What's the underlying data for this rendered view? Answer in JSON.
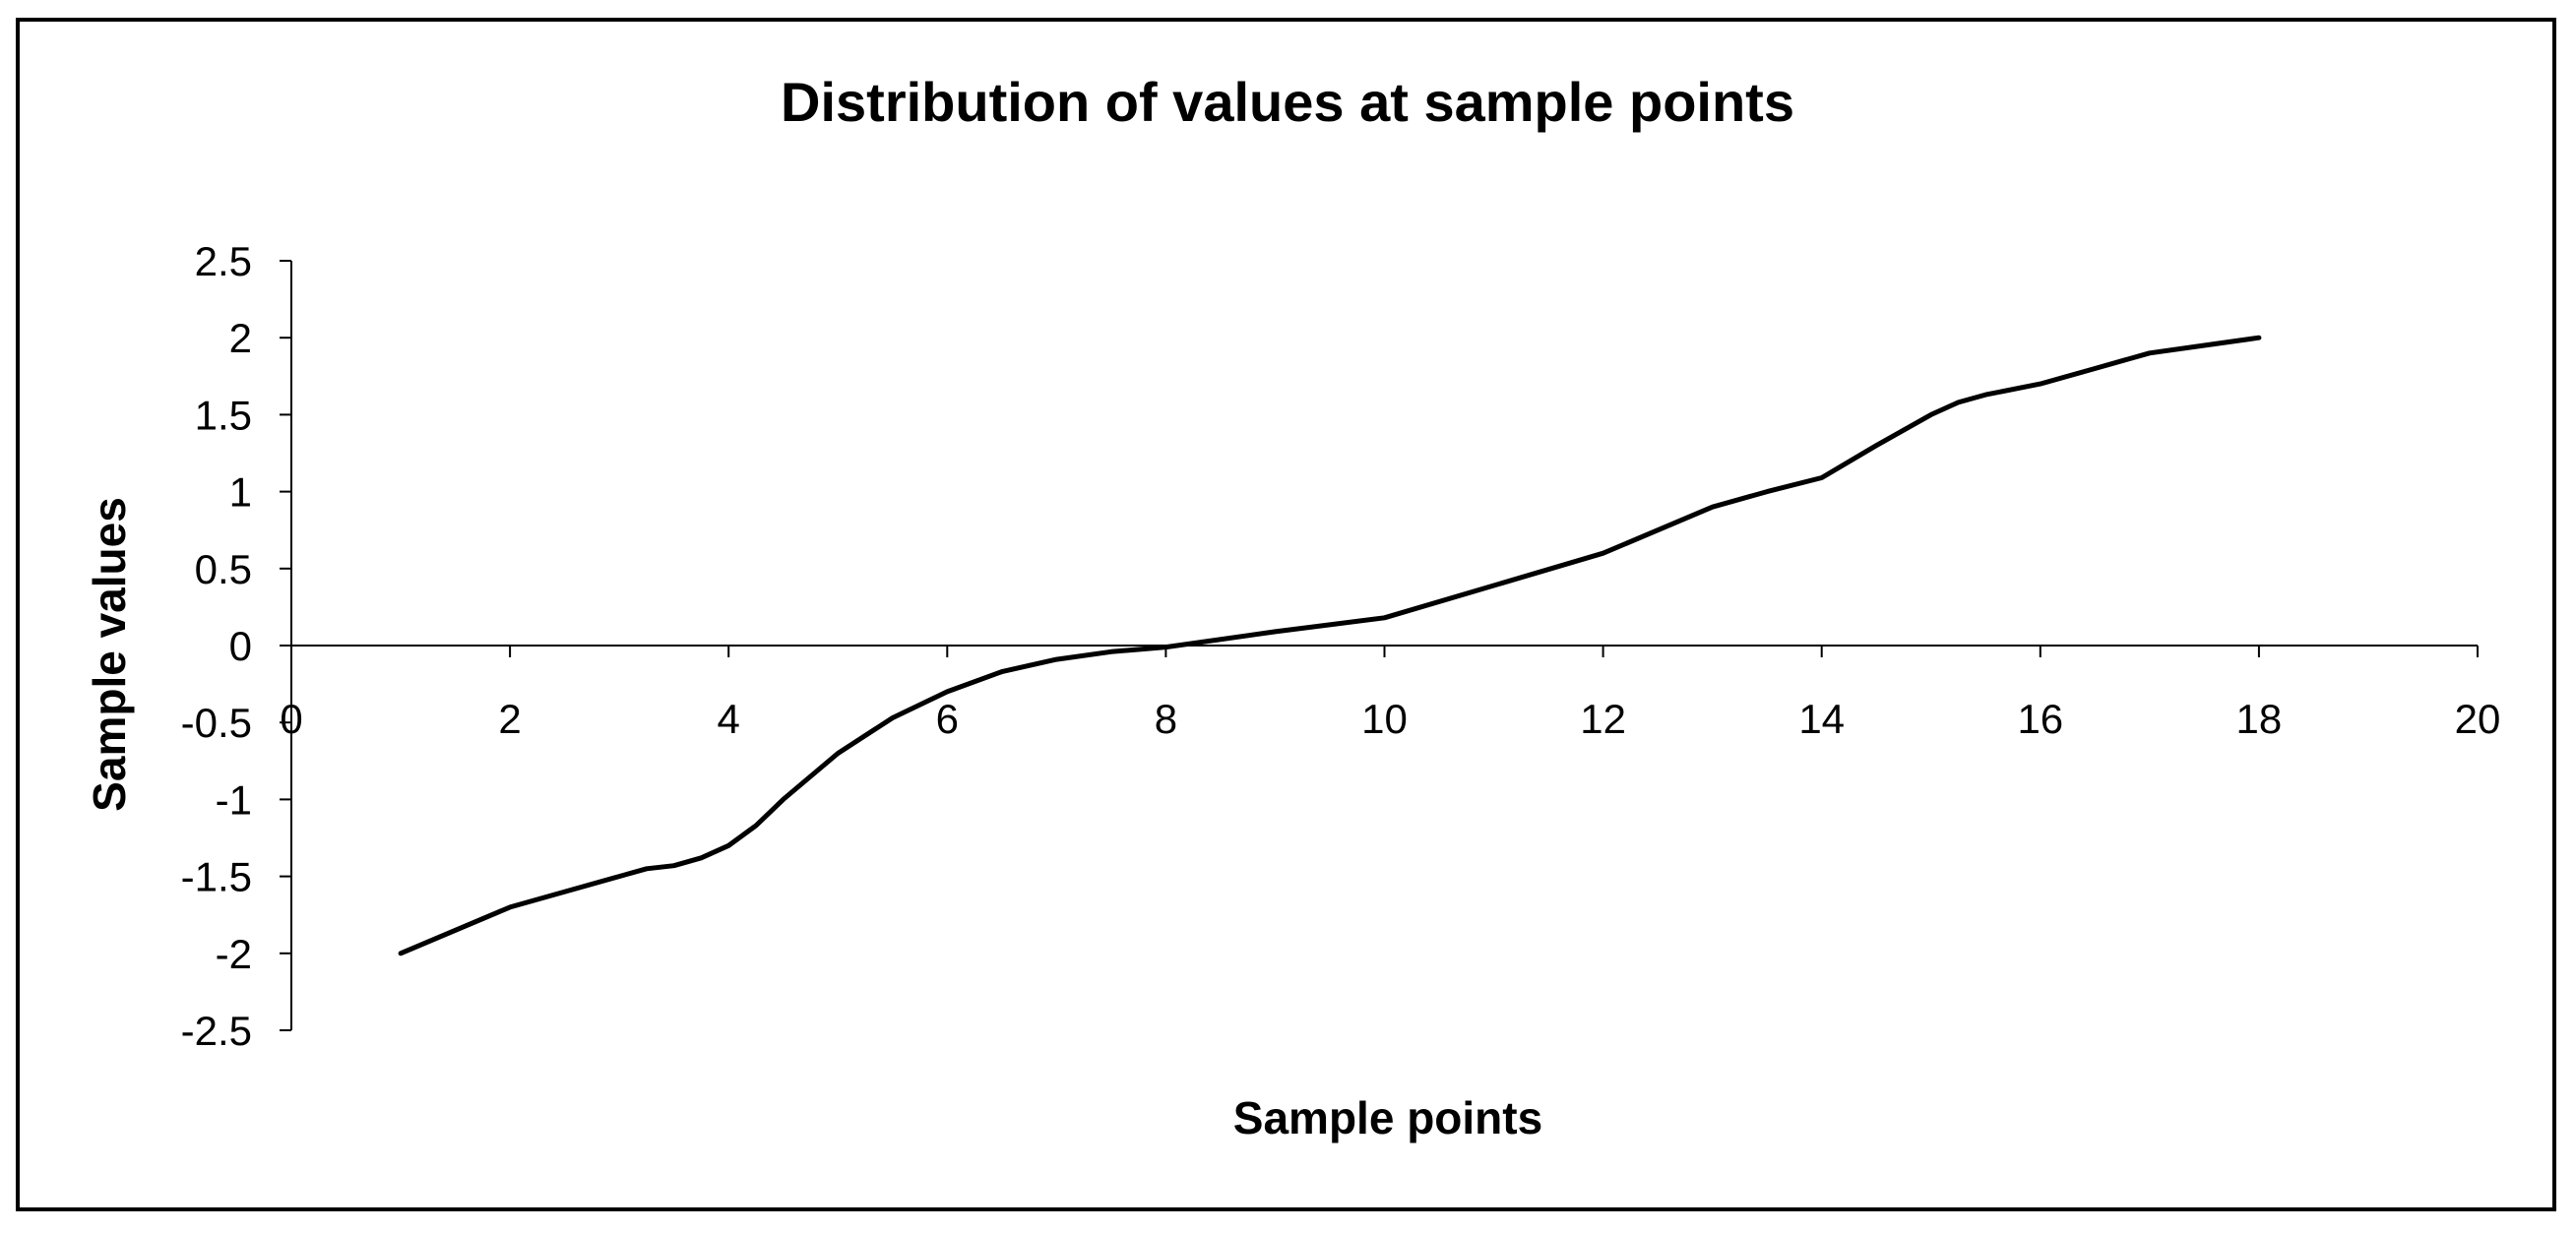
{
  "chart_data": {
    "type": "line",
    "title": "Distribution of values at sample points",
    "xlabel": "Sample points",
    "ylabel": "Sample values",
    "xlim": [
      0,
      20
    ],
    "ylim": [
      -2.5,
      2.5
    ],
    "x_ticks": [
      0,
      2,
      4,
      6,
      8,
      10,
      12,
      14,
      16,
      18,
      20
    ],
    "y_ticks": [
      2.5,
      2,
      1.5,
      1,
      0.5,
      0,
      -0.5,
      -1,
      -1.5,
      -2,
      -2.5
    ],
    "x_tick_labels": [
      "0",
      "2",
      "4",
      "6",
      "8",
      "10",
      "12",
      "14",
      "16",
      "18",
      "20"
    ],
    "y_tick_labels": [
      "2.5",
      "2",
      "1.5",
      "1",
      "0.5",
      "0",
      "-0.5",
      "-1",
      "-1.5",
      "-2",
      "-2.5"
    ],
    "grid": false,
    "legend": "none",
    "line_color": "#000000",
    "series": [
      {
        "x": [
          1,
          2,
          3,
          3.25,
          3.5,
          3.75,
          4,
          4.25,
          4.5,
          5,
          5.5,
          6,
          6.5,
          7,
          7.5,
          8,
          9,
          10,
          11,
          12,
          13,
          13.5,
          14,
          14.5,
          15,
          15.25,
          15.5,
          16,
          16.5,
          17,
          17.5,
          18
        ],
        "y": [
          -2,
          -1.7,
          -1.5,
          -1.45,
          -1.43,
          -1.38,
          -1.3,
          -1.17,
          -1.0,
          -0.7,
          -0.47,
          -0.3,
          -0.17,
          -0.09,
          -0.04,
          -0.01,
          0.09,
          0.18,
          0.39,
          0.6,
          0.9,
          1.0,
          1.09,
          1.3,
          1.5,
          1.58,
          1.63,
          1.7,
          1.8,
          1.9,
          1.95,
          2.0
        ]
      }
    ]
  }
}
